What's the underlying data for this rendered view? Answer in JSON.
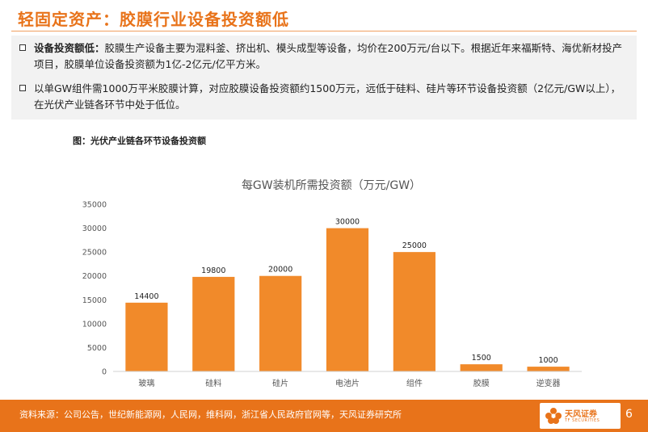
{
  "header": {
    "title": "轻固定资产：胶膜行业设备投资额低"
  },
  "bullets": [
    {
      "key": "设备投资额低：",
      "text": "胶膜生产设备主要为混料釜、挤出机、模头成型等设备，均价在200万元/台以下。根据近年来福斯特、海优新材投产项目，胶膜单位设备投资额为1亿-2亿元/亿平方米。"
    },
    {
      "key": "",
      "text": "以单GW组件需1000万平米胶膜计算，对应胶膜设备投资额约1500万元，远低于硅料、硅片等环节设备投资额（2亿元/GW以上），在光伏产业链各环节中处于低位。"
    }
  ],
  "figure_caption": "图：光伏产业链各环节设备投资额",
  "chart_data": {
    "type": "bar",
    "title": "每GW装机所需投资额（万元/GW）",
    "categories": [
      "玻璃",
      "硅料",
      "硅片",
      "电池片",
      "组件",
      "胶膜",
      "逆变器"
    ],
    "values": [
      14400,
      19800,
      20000,
      30000,
      25000,
      1500,
      1000
    ],
    "ylim": [
      0,
      35000
    ],
    "yticks": [
      0,
      5000,
      10000,
      15000,
      20000,
      25000,
      30000,
      35000
    ],
    "grid": false,
    "bar_color": "#f18a2a",
    "data_labels": true
  },
  "footer": {
    "source": "资料来源：公司公告，世纪新能源网，人民网，维科网，浙江省人民政府官网等，天风证券研究所",
    "logo_cn": "天风证券",
    "logo_en": "TF SECURITIES",
    "page_number": "6"
  },
  "colors": {
    "accent": "#e8731a",
    "bar": "#f18a2a"
  }
}
